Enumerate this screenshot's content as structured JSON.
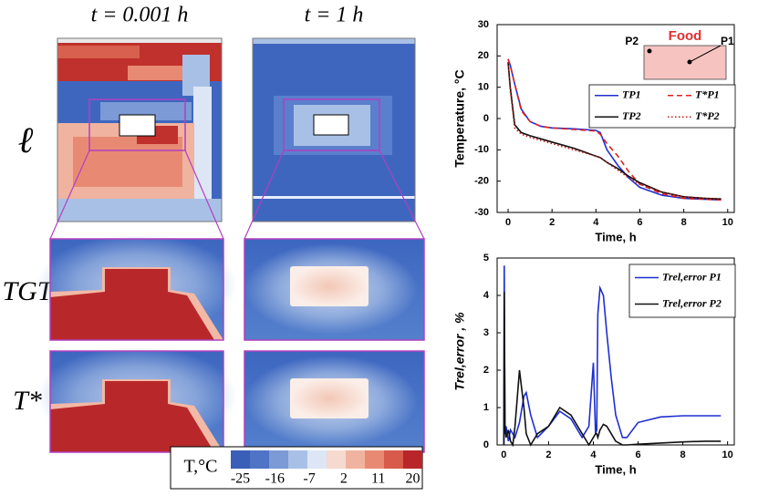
{
  "panels": {
    "columns": [
      "t = 0.001 h",
      "t = 1 h"
    ],
    "rows": [
      "ℓ",
      "TGT",
      "T*"
    ]
  },
  "chart_data": [
    {
      "type": "line",
      "xlabel": "Time, h",
      "ylabel": "Temperature, °C",
      "annotations": [
        "Food",
        "P1",
        "P2"
      ],
      "xlim": [
        -0.5,
        10.3
      ],
      "xticks": [
        0,
        2,
        4,
        6,
        8,
        10
      ],
      "ylim": [
        -30,
        30
      ],
      "yticks": [
        -30,
        -20,
        -10,
        0,
        10,
        20,
        30
      ],
      "x": [
        0,
        0.1,
        0.3,
        0.6,
        1,
        1.5,
        2,
        3,
        4,
        4.2,
        4.5,
        5,
        5.5,
        6,
        7,
        8,
        9,
        9.7
      ],
      "legend": "right",
      "series": [
        {
          "name": "TP1",
          "color": "#1f2fd0",
          "dash": "solid",
          "values": [
            19,
            17,
            11,
            3,
            -1,
            -2.5,
            -3,
            -3.3,
            -3.8,
            -4.5,
            -10,
            -15,
            -19,
            -22,
            -24.5,
            -25.5,
            -25.8,
            -26
          ]
        },
        {
          "name": "T*P1",
          "color": "#e02020",
          "dash": "dashed",
          "values": [
            19,
            17,
            11,
            2.5,
            -1,
            -2.5,
            -3,
            -3.5,
            -4,
            -5,
            -8,
            -12,
            -17,
            -21,
            -24,
            -25.5,
            -25.8,
            -26
          ]
        },
        {
          "name": "TP2",
          "color": "#111111",
          "dash": "solid",
          "values": [
            18,
            10,
            -2,
            -4.5,
            -5.5,
            -6.5,
            -7.5,
            -9.5,
            -12,
            -12.5,
            -14,
            -16,
            -18.5,
            -20.5,
            -23.5,
            -25,
            -25.5,
            -25.7
          ]
        },
        {
          "name": "T*P2",
          "color": "#c01818",
          "dash": "dotted",
          "values": [
            18,
            9,
            -3,
            -5,
            -6,
            -7,
            -8,
            -10,
            -12,
            -12.5,
            -14,
            -16.5,
            -19,
            -21,
            -23.5,
            -25,
            -25.5,
            -25.7
          ]
        }
      ]
    },
    {
      "type": "line",
      "xlabel": "Time, h",
      "ylabel": "Trel,error , %",
      "xlim": [
        -0.3,
        10.3
      ],
      "xticks": [
        0,
        2,
        4,
        6,
        8,
        10
      ],
      "ylim": [
        0,
        5
      ],
      "yticks": [
        0,
        1,
        2,
        3,
        4,
        5
      ],
      "x": [
        0,
        0.02,
        0.05,
        0.1,
        0.2,
        0.3,
        0.4,
        0.5,
        0.7,
        0.9,
        1.0,
        1.2,
        1.5,
        2,
        2.5,
        3,
        3.5,
        3.8,
        4.0,
        4.1,
        4.15,
        4.2,
        4.3,
        4.45,
        4.6,
        4.8,
        5.0,
        5.3,
        5.5,
        6,
        7,
        8,
        9,
        9.7
      ],
      "legend": "upper right",
      "series": [
        {
          "name": "Trel,error P1",
          "color": "#1f2fd0",
          "dash": "solid",
          "values": [
            0,
            4.8,
            0.3,
            0.5,
            0.1,
            0.4,
            0.3,
            0.2,
            0.6,
            1.3,
            1.4,
            0.8,
            0.2,
            0.5,
            0.9,
            0.7,
            0.2,
            0.5,
            2.2,
            0.3,
            0.4,
            3.5,
            4.2,
            4.0,
            3.0,
            1.8,
            0.8,
            0.2,
            0.2,
            0.6,
            0.75,
            0.78,
            0.78,
            0.78
          ]
        },
        {
          "name": "Trel,error P2",
          "color": "#111111",
          "dash": "solid",
          "values": [
            0,
            4.1,
            0.5,
            0.2,
            0.4,
            0.1,
            0.0,
            0.5,
            2.0,
            1.0,
            0.3,
            0.0,
            0.3,
            0.5,
            1.0,
            0.8,
            0.3,
            0.0,
            0.2,
            0.3,
            0.3,
            0.2,
            0.4,
            0.55,
            0.5,
            0.3,
            0.1,
            0.0,
            0.0,
            0.02,
            0.05,
            0.08,
            0.1,
            0.1
          ]
        }
      ]
    },
    {
      "type": "colorbar",
      "label": "T,°C",
      "ticks": [
        -25,
        -16,
        -7,
        2,
        11,
        20
      ],
      "colors": [
        "#3a5fb8",
        "#4f74c6",
        "#7b9ad6",
        "#a9c0e6",
        "#dde6f4",
        "#f6d9cf",
        "#f0b39f",
        "#e88a73",
        "#d85a4a",
        "#b8262a"
      ]
    }
  ]
}
